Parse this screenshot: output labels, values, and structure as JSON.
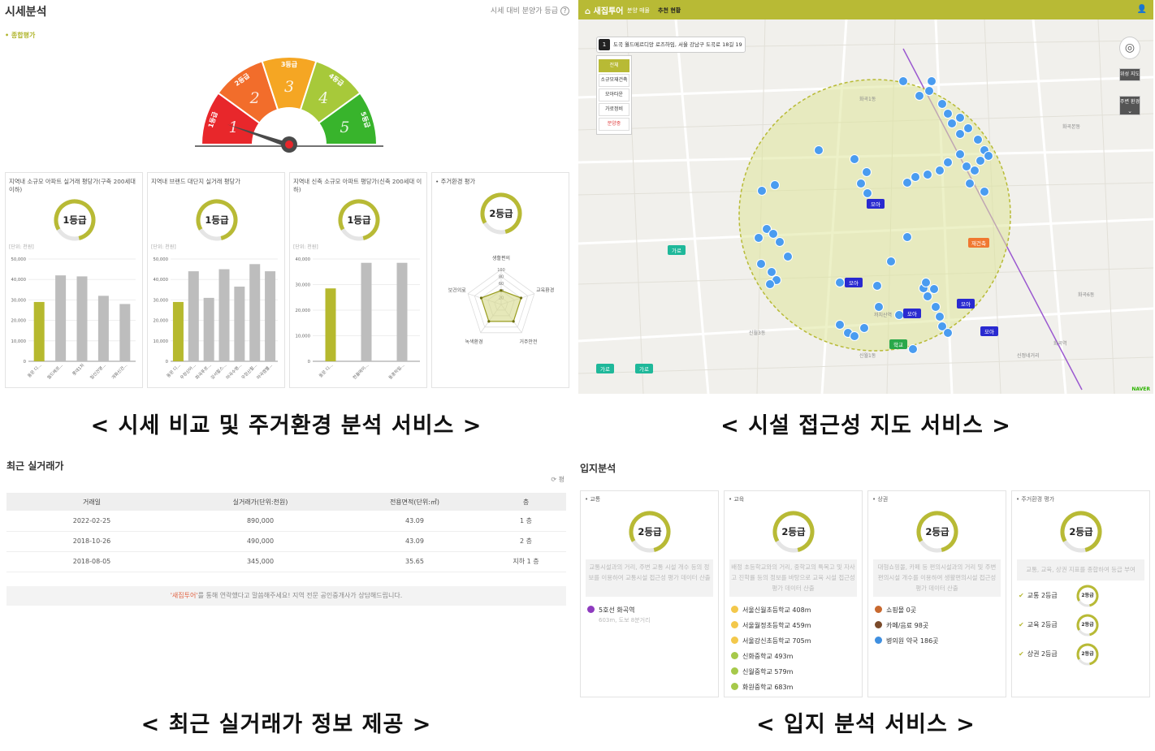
{
  "colors": {
    "accent": "#b8ba35",
    "bar_gray": "#bdbdbd",
    "bar_olive": "#b6b92e"
  },
  "captions": {
    "price": "< 시세 비교 및 주거환경 분석 서비스 >",
    "map": "< 시설 접근성 지도 서비스 >",
    "trades": "< 최근 실거래가 정보 제공 >",
    "location": "< 입지 분석 서비스 >"
  },
  "price_panel": {
    "title": "시세분석",
    "help": "시세 대비 분양가 등급",
    "help_icon": "question-icon",
    "section": "• 종합평가",
    "gauge": {
      "levels": [
        "1등급",
        "2등급",
        "3등급",
        "4등급",
        "5등급"
      ],
      "numbers": [
        "1",
        "2",
        "3",
        "4",
        "5"
      ],
      "colors": [
        "#e8272b",
        "#f26d2b",
        "#f5a623",
        "#a7c93a",
        "#38b42c"
      ],
      "pointer_level": 1
    },
    "cards": [
      {
        "title": "지역내 소규모 아파트 실거래 평당가(구축 200세대 이하)",
        "grade": "1등급",
        "unit": "[단위: 천원]"
      },
      {
        "title": "지역내 브랜드 대단지 실거래 평당가",
        "grade": "1등급",
        "unit": "[단위: 천원]"
      },
      {
        "title": "지역내 신축 소규모 아파트 평당가(신축 200세대 이하)",
        "grade": "1등급",
        "unit": "[단위: 천원]"
      },
      {
        "title": "• 주거환경 평가",
        "grade": "2등급"
      }
    ]
  },
  "chart_data": [
    {
      "type": "bar",
      "ylim": [
        0,
        50000
      ],
      "yticks": [
        "0",
        "10,000",
        "20,000",
        "30,000",
        "40,000",
        "50,000"
      ],
      "categories": [
        "동문 디...",
        "월드메르...",
        "롯데1차",
        "일신건영...",
        "개화신건..."
      ],
      "values": [
        29000,
        42000,
        41500,
        32000,
        28000
      ]
    },
    {
      "type": "bar",
      "ylim": [
        0,
        50000
      ],
      "yticks": [
        "0",
        "10,000",
        "20,000",
        "30,000",
        "40,000",
        "50,000"
      ],
      "categories": [
        "동문 디...",
        "우장산아...",
        "화곡푸르...",
        "강서힐스...",
        "마곡수명...",
        "우장산힐...",
        "마곡엠벨..."
      ],
      "values": [
        29000,
        44000,
        31000,
        45000,
        36500,
        47500,
        44000
      ]
    },
    {
      "type": "bar",
      "ylim": [
        0,
        40000
      ],
      "yticks": [
        "0",
        "10,000",
        "20,000",
        "30,000",
        "40,000"
      ],
      "categories": [
        "동문 디...",
        "한울에이...",
        "동훈하일..."
      ],
      "values": [
        28500,
        38500,
        38500
      ]
    },
    {
      "type": "radar",
      "axes": [
        "생활편의",
        "교육환경",
        "거주안전",
        "녹색환경",
        "보건의료"
      ],
      "ticks": [
        "100",
        "80",
        "60",
        "40",
        "20"
      ],
      "values": [
        40,
        60,
        60,
        60,
        60
      ]
    }
  ],
  "map_panel": {
    "logo": "새집투어",
    "nav": [
      "분양 매물",
      "추천 현황"
    ],
    "address_num": "1",
    "address": "도곡 월드메르디앙 로즈하임, 서울 강남구 도곡로 18길 19",
    "filters": [
      "전체",
      "소규모재건축",
      "모아타운",
      "가로정비",
      "분양중"
    ],
    "controls": [
      "위성 지도",
      "주변 환경"
    ],
    "markers": {
      "moa": "모아",
      "garo": "가로",
      "jaegeon": "재건축",
      "school": "학교"
    },
    "places": [
      "화곡1동",
      "화곡본동",
      "신월3동",
      "신월1동",
      "화곡6동",
      "까치산역",
      "화곡역",
      "신정네거리"
    ],
    "credit": "NAVER"
  },
  "trades": {
    "title": "최근 실거래가",
    "unit_toggle": "평",
    "headers": [
      "거래일",
      "실거래가(단위:천원)",
      "전용면적(단위:㎡)",
      "층"
    ],
    "rows": [
      [
        "2022-02-25",
        "890,000",
        "43.09",
        "1 층"
      ],
      [
        "2018-10-26",
        "490,000",
        "43.09",
        "2 층"
      ],
      [
        "2018-08-05",
        "345,000",
        "35.65",
        "지하 1 층"
      ]
    ],
    "notice_hl": "'새집투어'",
    "notice": "를 통해 연락했다고 말씀해주세요! 지역 전문 공인중개사가 상담해드립니다."
  },
  "location": {
    "title": "입지분석",
    "cards": [
      {
        "head": "• 교통",
        "grade": "2등급",
        "desc": "교통시설과의 거리, 주변 교통 시설 개수 등의 정보를 이용하여 교통시설 접근성 평가 데이터 산출",
        "items": [
          {
            "label": "5호선 화곡역",
            "note": "603m, 도보 8분거리",
            "color": "#8e3bbf"
          }
        ]
      },
      {
        "head": "• 교육",
        "grade": "2등급",
        "desc": "배정 초등학교와의 거리, 중학교의 특목고 및 자사고 진학률 등의 정보를 바탕으로 교육 시설 접근성 평가 데이터 산출",
        "items": [
          {
            "label": "서울신월초등학교 408m",
            "color": "#f3c84b"
          },
          {
            "label": "서울월정초등학교 459m",
            "color": "#f3c84b"
          },
          {
            "label": "서울강신초등학교 705m",
            "color": "#f3c84b"
          },
          {
            "label": "신화중학교 493m",
            "color": "#a6c94a"
          },
          {
            "label": "신월중학교 579m",
            "color": "#a6c94a"
          },
          {
            "label": "화원중학교 683m",
            "color": "#a6c94a"
          }
        ]
      },
      {
        "head": "• 상권",
        "grade": "2등급",
        "desc": "대형쇼핑몰, 카페 등 편의시설과의 거리 및 주변 편의시설 개수를 이용하여 생활편의시설 접근성 평가 데이터 산출",
        "items": [
          {
            "label": "쇼핑몰 0곳",
            "color": "#c8692f"
          },
          {
            "label": "카페/음료 98곳",
            "color": "#7a4a2a"
          },
          {
            "label": "병의원 약국 186곳",
            "color": "#3f8fe0"
          }
        ]
      },
      {
        "head": "• 주거환경 평가",
        "grade": "2등급",
        "desc": "교통, 교육, 상권 지표를 종합하여 등급 부여",
        "summary": [
          {
            "label": "교통 2등급",
            "grade": "2등급"
          },
          {
            "label": "교육 2등급",
            "grade": "2등급"
          },
          {
            "label": "상권 2등급",
            "grade": "2등급"
          }
        ]
      }
    ]
  }
}
